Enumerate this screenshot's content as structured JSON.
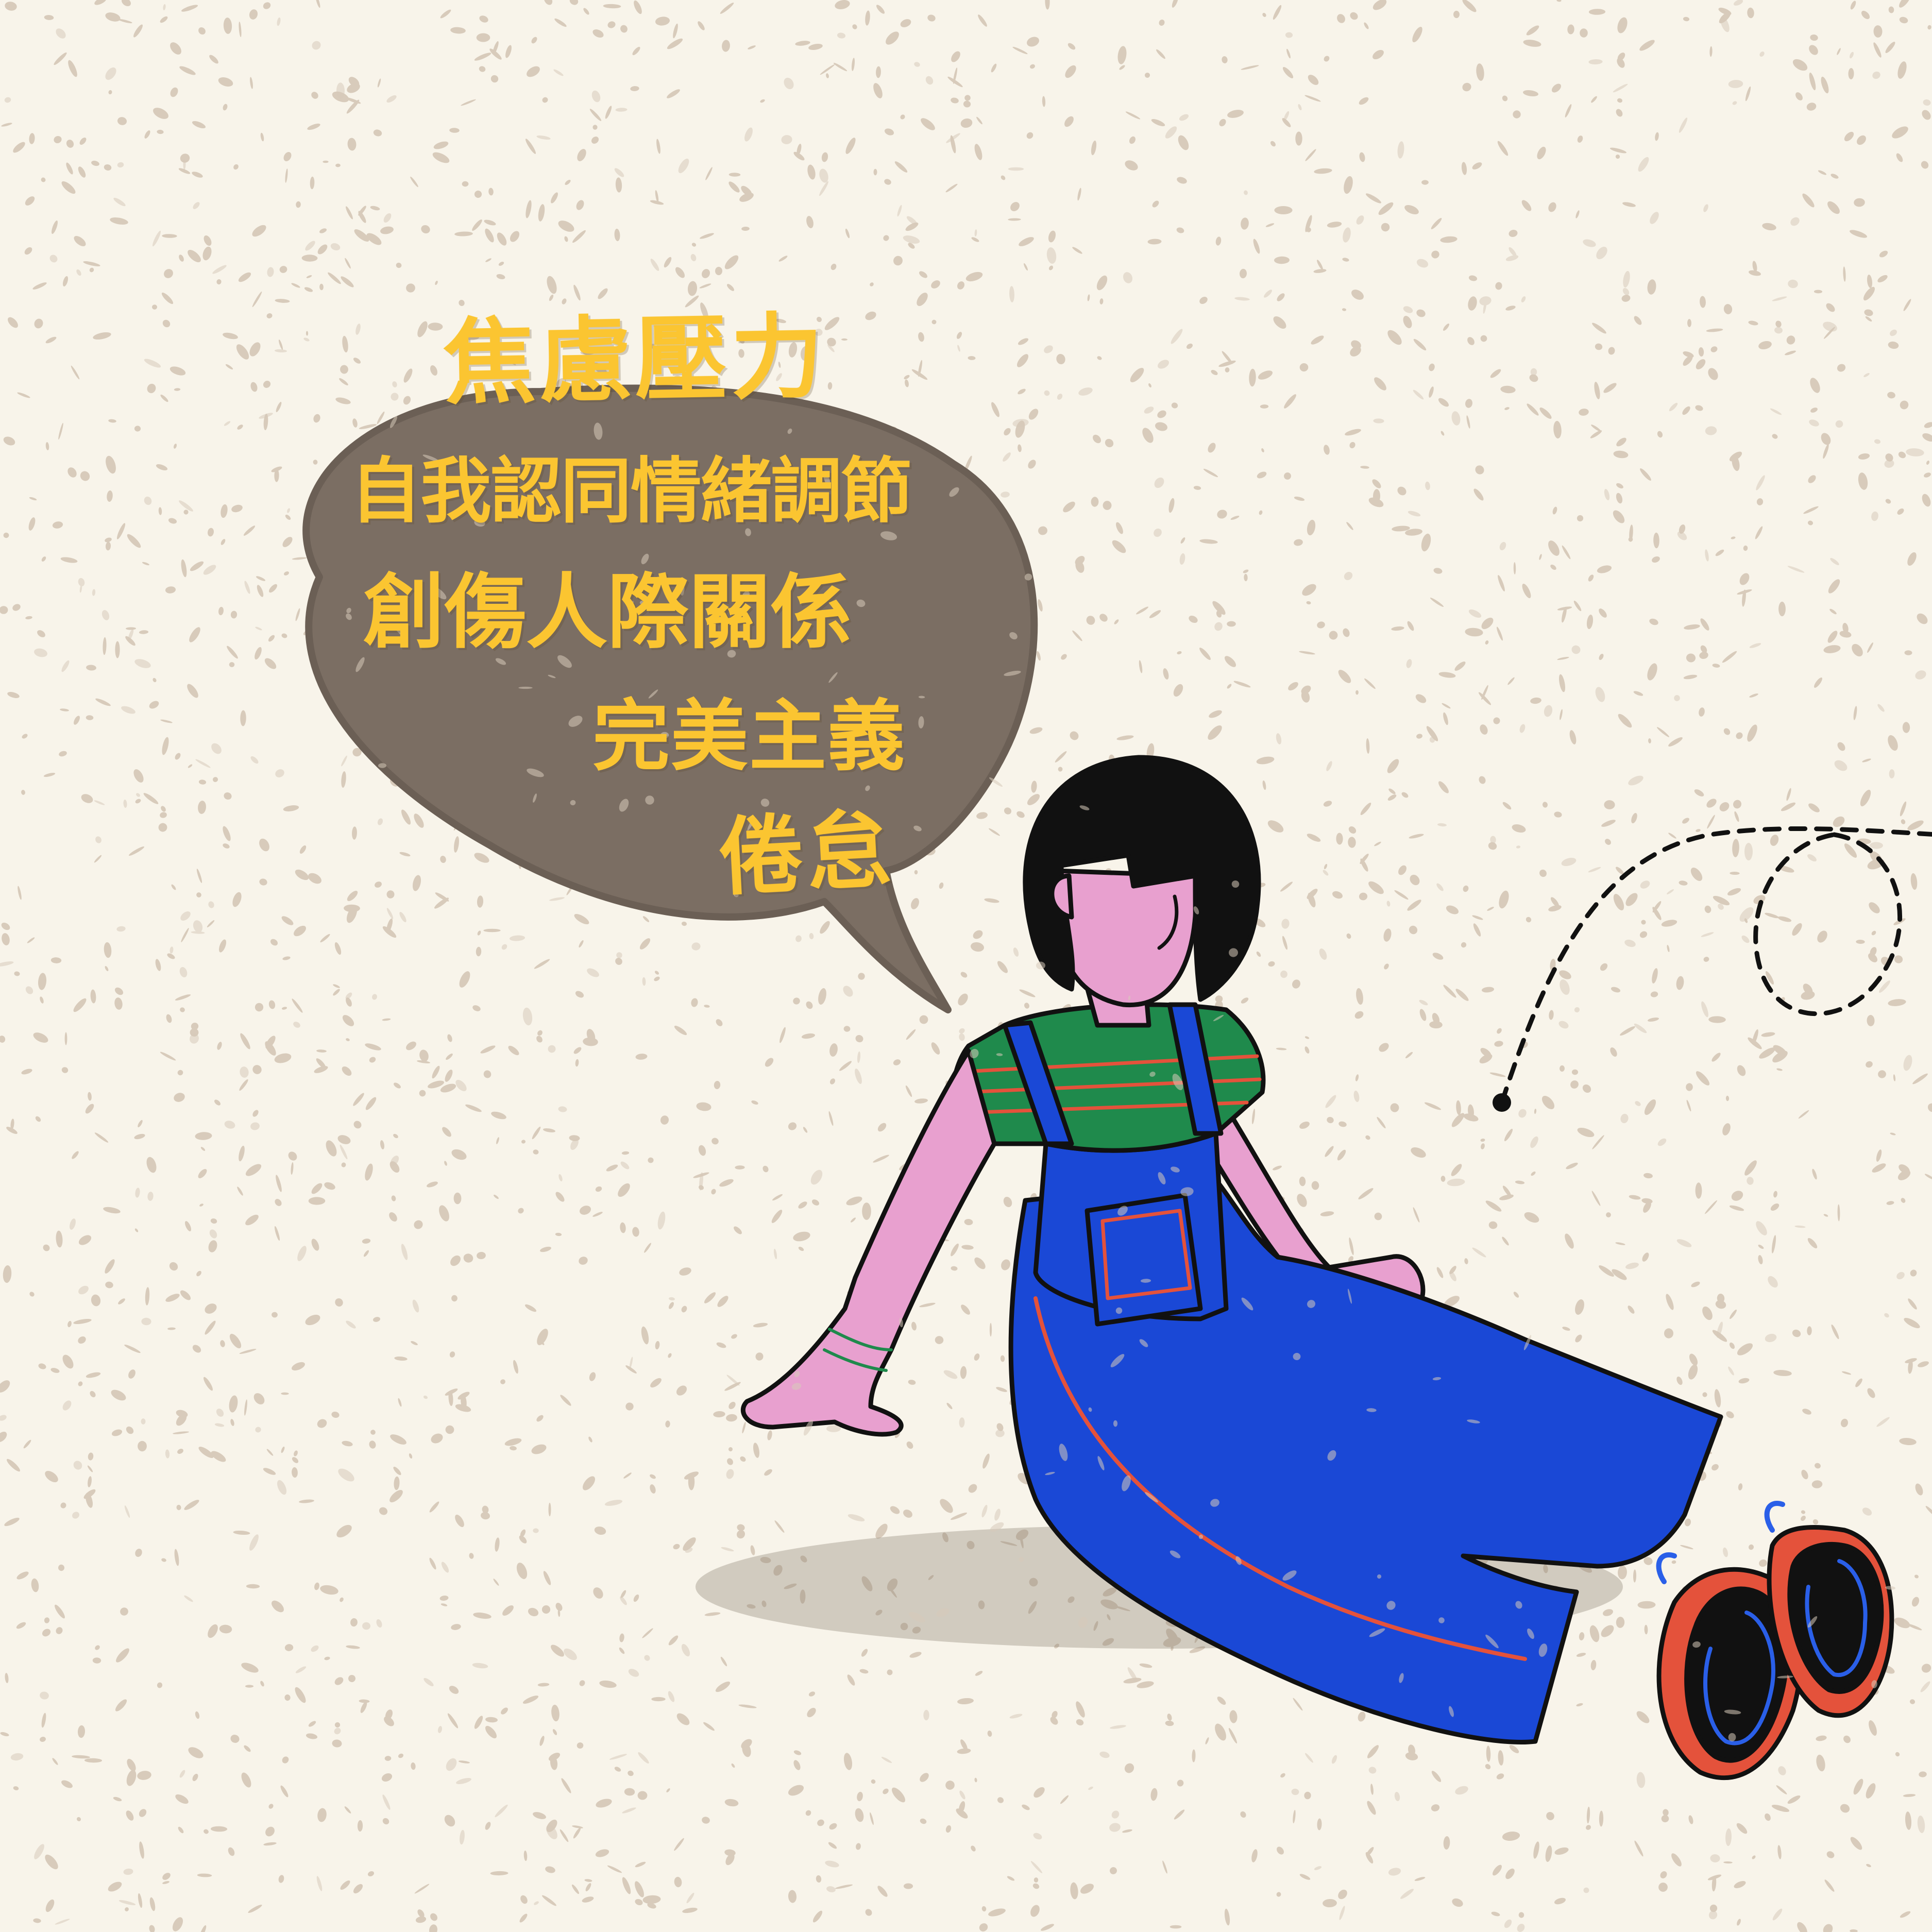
{
  "bubble": {
    "topics": [
      "焦慮壓力",
      "自我認同情緒調節",
      "創傷人際關係",
      "完美主義",
      "倦怠"
    ]
  },
  "colors": {
    "background": "#f8f4ea",
    "speckle": "#d8cbbb",
    "bubble": "#7b6e63",
    "text": "#fbc531",
    "skin": "#e8a0cf",
    "hair": "#111111",
    "overalls": "#1a48d6",
    "shirt": "#1f8a4c",
    "stripe": "#e4523b",
    "shoe": "#e4523b",
    "shoe_lace": "#2a5fe8"
  }
}
